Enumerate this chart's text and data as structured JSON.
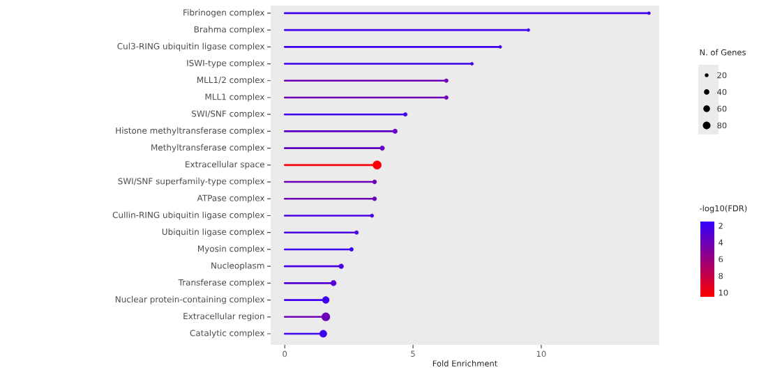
{
  "chart_data": {
    "type": "lollipop",
    "orientation": "horizontal",
    "xlabel": "Fold Enrichment",
    "categories": [
      "Fibrinogen complex",
      "Brahma complex",
      "Cul3-RING ubiquitin ligase complex",
      "ISWI-type complex",
      "MLL1/2 complex",
      "MLL1 complex",
      "SWI/SNF complex",
      "Histone methyltransferase complex",
      "Methyltransferase complex",
      "Extracellular space",
      "SWI/SNF superfamily-type complex",
      "ATPase complex",
      "Cullin-RING ubiquitin ligase complex",
      "Ubiquitin ligase complex",
      "Myosin complex",
      "Nucleoplasm",
      "Transferase complex",
      "Nuclear protein-containing complex",
      "Extracellular region",
      "Catalytic complex"
    ],
    "values": [
      14.2,
      9.5,
      8.4,
      7.3,
      6.3,
      6.3,
      4.7,
      4.3,
      3.8,
      3.6,
      3.5,
      3.5,
      3.4,
      2.8,
      2.6,
      2.2,
      1.9,
      1.6,
      1.6,
      1.5
    ],
    "sizes": [
      13,
      13,
      13,
      13,
      21,
      21,
      21,
      29,
      29,
      100,
      24,
      24,
      18,
      21,
      21,
      32,
      42,
      66,
      95,
      72
    ],
    "size_legend": [
      20,
      40,
      60,
      80
    ],
    "legend_title": "N. of Genes",
    "cvalues": [
      2,
      2,
      2,
      2,
      4,
      4,
      2,
      3.5,
      3.5,
      10.3,
      4,
      4,
      2.5,
      2.5,
      2,
      2.5,
      3,
      2,
      4,
      2
    ],
    "clabel": "-log10(FDR)",
    "clim": [
      1.5,
      10.5
    ],
    "cticks": [
      2,
      4,
      6,
      8,
      10
    ],
    "xlim": [
      -0.55,
      14.6
    ],
    "xticks": [
      0,
      5,
      10
    ]
  }
}
